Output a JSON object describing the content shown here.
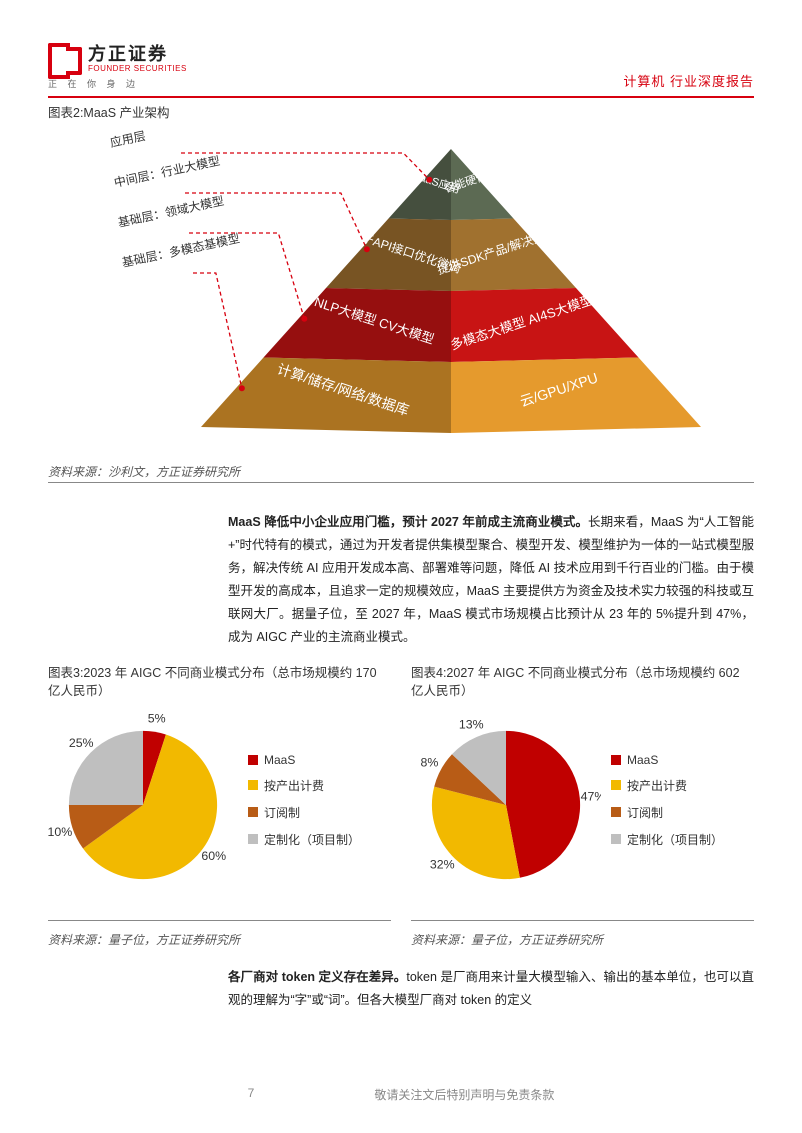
{
  "header": {
    "logo_cn": "方正证券",
    "logo_en": "FOUNDER SECURITIES",
    "logo_tag": "正 在 你 身 边",
    "right": "计算机 行业深度报告"
  },
  "fig2": {
    "title": "图表2:MaaS 产业架构",
    "source": "资料来源：沙利文，方正证券研究所",
    "style": {
      "type": "pyramid",
      "bg": "#ffffff",
      "callout_line_color": "#d7000f",
      "callout_dash": "4 3",
      "label_font_cn": 12,
      "tier_label_font": 12
    },
    "callouts": [
      "应用层",
      "中间层：行业大模型",
      "基础层：领域大模型",
      "基础层：多模态基模型"
    ],
    "tiers": [
      {
        "color": "#5c6a53",
        "left": "SaaS应用",
        "right": "智能硬件"
      },
      {
        "color": "#a0712f",
        "left": "基于API接口优化微调",
        "right": "提供SDK产品/解决方案"
      },
      {
        "color": "#c81414",
        "left": "NLP大模型   CV大模型",
        "right": "多模态大模型   AI4S大模型等"
      },
      {
        "color": "#e59a2d",
        "left": "计算/储存/网络/数据库",
        "right": "云/GPU/XPU"
      }
    ]
  },
  "para1": {
    "lead": "MaaS 降低中小企业应用门槛，预计 2027 年前成主流商业模式。",
    "body": "长期来看，MaaS 为“人工智能+”时代特有的模式，通过为开发者提供集模型聚合、模型开发、模型维护为一体的一站式模型服务，解决传统 AI 应用开发成本高、部署难等问题，降低 AI 技术应用到千行百业的门槛。由于模型开发的高成本，且追求一定的规模效应，MaaS 主要提供方为资金及技术实力较强的科技或互联网大厂。据量子位，至 2027 年，MaaS 模式市场规模占比预计从 23 年的 5%提升到 47%，成为 AIGC 产业的主流商业模式。"
  },
  "fig3": {
    "title": "图表3:2023 年 AIGC 不同商业模式分布（总市场规模约 170 亿人民币）",
    "source": "资料来源：量子位，方正证券研究所",
    "type": "pie",
    "background_color": "#ffffff",
    "label_fontsize": 12,
    "label_color": "#333333",
    "pct_fontsize": 13,
    "series": [
      {
        "name": "MaaS",
        "value": 5,
        "color": "#c00000"
      },
      {
        "name": "按产出计费",
        "value": 60,
        "color": "#f2b900"
      },
      {
        "name": "订阅制",
        "value": 10,
        "color": "#b85c16"
      },
      {
        "name": "定制化（项目制）",
        "value": 25,
        "color": "#bfbfbf"
      }
    ]
  },
  "fig4": {
    "title": "图表4:2027 年 AIGC 不同商业模式分布（总市场规模约 602 亿人民币）",
    "source": "资料来源：量子位，方正证券研究所",
    "type": "pie",
    "background_color": "#ffffff",
    "label_fontsize": 12,
    "label_color": "#333333",
    "pct_fontsize": 13,
    "series": [
      {
        "name": "MaaS",
        "value": 47,
        "color": "#c00000"
      },
      {
        "name": "按产出计费",
        "value": 32,
        "color": "#f2b900"
      },
      {
        "name": "订阅制",
        "value": 8,
        "color": "#b85c16"
      },
      {
        "name": "定制化（项目制）",
        "value": 13,
        "color": "#bfbfbf"
      }
    ]
  },
  "para2": {
    "lead": "各厂商对 token 定义存在差异。",
    "body": "token 是厂商用来计量大模型输入、输出的基本单位，也可以直观的理解为“字”或“词”。但各大模型厂商对 token 的定义"
  },
  "footer": {
    "page": "7",
    "disclaimer": "敬请关注文后特别声明与免责条款"
  }
}
